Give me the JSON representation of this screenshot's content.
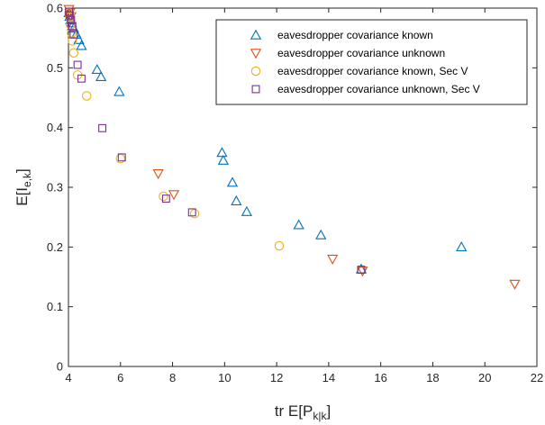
{
  "chart_data": {
    "type": "scatter",
    "title": "",
    "xlabel": {
      "base": "tr E[P",
      "sub": "k|k",
      "suffix": "]"
    },
    "ylabel": {
      "base": "E[I",
      "sub": "e,k",
      "suffix": "]"
    },
    "xlim": [
      4,
      22
    ],
    "ylim": [
      0,
      0.6
    ],
    "xticks": [
      4,
      6,
      8,
      10,
      12,
      14,
      16,
      18,
      20,
      22
    ],
    "yticks": [
      0,
      0.1,
      0.2,
      0.3,
      0.4,
      0.5,
      0.6
    ],
    "grid": false,
    "legend_position": "top-right",
    "series": [
      {
        "name": "eavesdropper covariance known",
        "marker": "triangle-up",
        "color": "#0072BD",
        "points": [
          [
            4.02,
            0.592
          ],
          [
            4.05,
            0.586
          ],
          [
            4.08,
            0.58
          ],
          [
            4.12,
            0.575
          ],
          [
            4.15,
            0.57
          ],
          [
            4.2,
            0.566
          ],
          [
            4.3,
            0.556
          ],
          [
            4.4,
            0.547
          ],
          [
            4.5,
            0.537
          ],
          [
            5.1,
            0.497
          ],
          [
            5.25,
            0.485
          ],
          [
            5.95,
            0.46
          ],
          [
            9.9,
            0.358
          ],
          [
            9.95,
            0.345
          ],
          [
            10.3,
            0.308
          ],
          [
            10.45,
            0.277
          ],
          [
            10.85,
            0.259
          ],
          [
            12.85,
            0.237
          ],
          [
            13.7,
            0.22
          ],
          [
            15.25,
            0.163
          ],
          [
            19.1,
            0.2
          ]
        ]
      },
      {
        "name": "eavesdropper covariance unknown",
        "marker": "triangle-down",
        "color": "#D95319",
        "points": [
          [
            4.02,
            0.598
          ],
          [
            4.05,
            0.592
          ],
          [
            4.1,
            0.586
          ],
          [
            7.45,
            0.323
          ],
          [
            8.05,
            0.288
          ],
          [
            14.15,
            0.18
          ],
          [
            15.3,
            0.16
          ],
          [
            21.15,
            0.138
          ]
        ]
      },
      {
        "name": "eavesdropper covariance known, Sec V",
        "marker": "circle",
        "color": "#EDB120",
        "points": [
          [
            4.02,
            0.592
          ],
          [
            4.05,
            0.585
          ],
          [
            4.08,
            0.572
          ],
          [
            4.12,
            0.558
          ],
          [
            4.15,
            0.545
          ],
          [
            4.2,
            0.525
          ],
          [
            4.35,
            0.488
          ],
          [
            4.7,
            0.453
          ],
          [
            6.0,
            0.348
          ],
          [
            7.65,
            0.285
          ],
          [
            8.85,
            0.256
          ],
          [
            12.1,
            0.202
          ]
        ]
      },
      {
        "name": "eavesdropper covariance unknown, Sec V",
        "marker": "square",
        "color": "#7E2F8E",
        "points": [
          [
            4.02,
            0.594
          ],
          [
            4.05,
            0.588
          ],
          [
            4.1,
            0.58
          ],
          [
            4.15,
            0.57
          ],
          [
            4.2,
            0.556
          ],
          [
            4.35,
            0.505
          ],
          [
            4.5,
            0.482
          ],
          [
            5.3,
            0.399
          ],
          [
            6.05,
            0.35
          ],
          [
            7.75,
            0.281
          ],
          [
            8.75,
            0.258
          ],
          [
            15.25,
            0.162
          ]
        ]
      }
    ]
  }
}
